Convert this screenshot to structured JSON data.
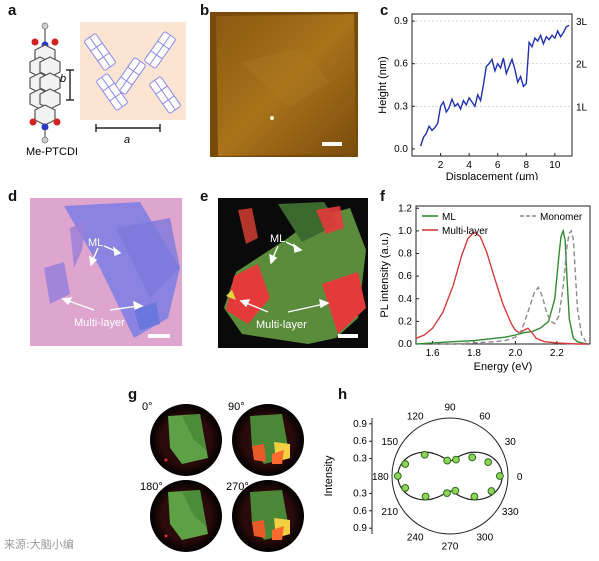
{
  "panel_labels": [
    "a",
    "b",
    "c",
    "d",
    "e",
    "f",
    "g",
    "h"
  ],
  "panel_a": {
    "molecule_name": "Me-PTCDI",
    "axis_a": "a",
    "axis_b": "b"
  },
  "panel_d": {
    "ml_label": "ML",
    "multi_label": "Multi-layer"
  },
  "panel_e": {
    "ml_label": "ML",
    "multi_label": "Multi-layer"
  },
  "panel_g": {
    "angles": [
      "0°",
      "90°",
      "180°",
      "270°"
    ]
  },
  "watermark": "来源:大脑小编",
  "colors": {
    "ml_green": "#2e8b2e",
    "multilayer_red": "#d43c3c",
    "monomer_gray": "#8a8a8a",
    "height_blue": "#2030b0"
  },
  "chart_data": [
    {
      "id": "c",
      "type": "line",
      "xlabel": "Displacement (μm)",
      "ylabel": "Height (nm)",
      "xlim": [
        0,
        11.2
      ],
      "ylim": [
        -0.05,
        0.95
      ],
      "xticks": [
        "2",
        "4",
        "6",
        "8",
        "10"
      ],
      "xtick_values": [
        2,
        4,
        6,
        8,
        10
      ],
      "yticks": [
        "0.0",
        "0.3",
        "0.6",
        "0.9"
      ],
      "ytick_values": [
        0.0,
        0.3,
        0.6,
        0.9
      ],
      "right_ticks": [
        "1L",
        "2L",
        "3L"
      ],
      "right_tick_values": [
        0.3,
        0.6,
        0.9
      ],
      "series": [
        {
          "x": [
            0.6,
            0.8,
            1.0,
            1.2,
            1.4,
            1.6,
            1.8,
            2.0,
            2.2,
            2.4,
            2.6,
            2.8,
            3.0,
            3.2,
            3.4,
            3.6,
            3.8,
            4.0,
            4.2,
            4.4,
            4.6,
            4.8,
            5.0,
            5.2,
            5.4,
            5.6,
            5.8,
            6.0,
            6.2,
            6.4,
            6.6,
            6.8,
            7.0,
            7.2,
            7.4,
            7.6,
            7.8,
            8.0,
            8.2,
            8.4,
            8.6,
            8.8,
            9.0,
            9.2,
            9.4,
            9.6,
            9.8,
            10.0,
            10.2,
            10.4,
            10.6,
            10.8,
            11.0
          ],
          "y": [
            0.02,
            0.08,
            0.11,
            0.16,
            0.13,
            0.15,
            0.18,
            0.3,
            0.33,
            0.26,
            0.29,
            0.35,
            0.3,
            0.32,
            0.28,
            0.34,
            0.31,
            0.36,
            0.33,
            0.3,
            0.38,
            0.34,
            0.45,
            0.58,
            0.6,
            0.63,
            0.55,
            0.6,
            0.57,
            0.64,
            0.53,
            0.58,
            0.63,
            0.56,
            0.47,
            0.51,
            0.44,
            0.46,
            0.75,
            0.72,
            0.78,
            0.76,
            0.8,
            0.74,
            0.79,
            0.77,
            0.8,
            0.78,
            0.83,
            0.79,
            0.82,
            0.86,
            0.87
          ]
        }
      ]
    },
    {
      "id": "f",
      "type": "line",
      "xlabel": "Energy (eV)",
      "ylabel": "PL intensity (a.u.)",
      "xlim": [
        1.52,
        2.36
      ],
      "ylim": [
        0,
        1.22
      ],
      "xticks": [
        "1.6",
        "1.8",
        "2.0",
        "2.2"
      ],
      "xtick_values": [
        1.6,
        1.8,
        2.0,
        2.2
      ],
      "yticks": [
        "0.0",
        "0.2",
        "0.4",
        "0.6",
        "0.8",
        "1.0",
        "1.2"
      ],
      "ytick_values": [
        0.0,
        0.2,
        0.4,
        0.6,
        0.8,
        1.0,
        1.2
      ],
      "legend": [
        "ML",
        "Multi-layer",
        "Monomer"
      ],
      "series": [
        {
          "name": "ML",
          "x": [
            1.52,
            1.6,
            1.7,
            1.8,
            1.9,
            1.95,
            2.0,
            2.04,
            2.08,
            2.12,
            2.16,
            2.19,
            2.21,
            2.22,
            2.23,
            2.24,
            2.25,
            2.26,
            2.28,
            2.3,
            2.32,
            2.35
          ],
          "y": [
            0.0,
            0.01,
            0.02,
            0.03,
            0.05,
            0.06,
            0.08,
            0.1,
            0.11,
            0.14,
            0.2,
            0.4,
            0.78,
            0.95,
            1.0,
            0.92,
            0.55,
            0.22,
            0.05,
            0.02,
            0.01,
            0.0
          ]
        },
        {
          "name": "Multi-layer",
          "x": [
            1.52,
            1.56,
            1.6,
            1.65,
            1.7,
            1.74,
            1.77,
            1.8,
            1.83,
            1.86,
            1.9,
            1.94,
            1.98,
            2.0,
            2.02,
            2.04,
            2.06,
            2.08,
            2.1,
            2.14,
            2.2,
            2.3,
            2.35
          ],
          "y": [
            0.05,
            0.08,
            0.14,
            0.28,
            0.52,
            0.78,
            0.93,
            0.99,
            0.95,
            0.82,
            0.58,
            0.35,
            0.18,
            0.12,
            0.1,
            0.12,
            0.14,
            0.1,
            0.05,
            0.02,
            0.01,
            0.0,
            0.0
          ]
        },
        {
          "name": "Monomer",
          "x": [
            1.6,
            1.7,
            1.8,
            1.9,
            1.95,
            2.0,
            2.03,
            2.06,
            2.09,
            2.11,
            2.13,
            2.15,
            2.17,
            2.19,
            2.21,
            2.23,
            2.25,
            2.26,
            2.27,
            2.28,
            2.29,
            2.3,
            2.32,
            2.34
          ],
          "y": [
            0.0,
            0.0,
            0.01,
            0.02,
            0.03,
            0.06,
            0.12,
            0.28,
            0.45,
            0.5,
            0.42,
            0.28,
            0.2,
            0.18,
            0.25,
            0.5,
            0.88,
            0.98,
            1.0,
            0.92,
            0.6,
            0.3,
            0.08,
            0.02
          ]
        }
      ]
    },
    {
      "id": "h",
      "type": "scatter",
      "ylabel": "Intensity",
      "angle_ticks": [
        "0",
        "30",
        "60",
        "90",
        "120",
        "150",
        "180",
        "210",
        "240",
        "270",
        "300",
        "330"
      ],
      "angle_tick_values": [
        0,
        30,
        60,
        90,
        120,
        150,
        180,
        210,
        240,
        270,
        300,
        330
      ],
      "radial_ticks": [
        "0.3",
        "0.6",
        "0.9"
      ],
      "radial_tick_values": [
        0.3,
        0.6,
        0.9
      ],
      "rmax": 1.0,
      "points": {
        "angle": [
          0,
          20,
          40,
          70,
          100,
          140,
          165,
          180,
          195,
          220,
          260,
          290,
          320,
          340
        ],
        "r": [
          0.86,
          0.7,
          0.5,
          0.3,
          0.27,
          0.57,
          0.8,
          0.9,
          0.8,
          0.55,
          0.3,
          0.27,
          0.55,
          0.76
        ]
      },
      "fit": {
        "amplitude": 0.9,
        "baseline": 0.26
      }
    }
  ]
}
